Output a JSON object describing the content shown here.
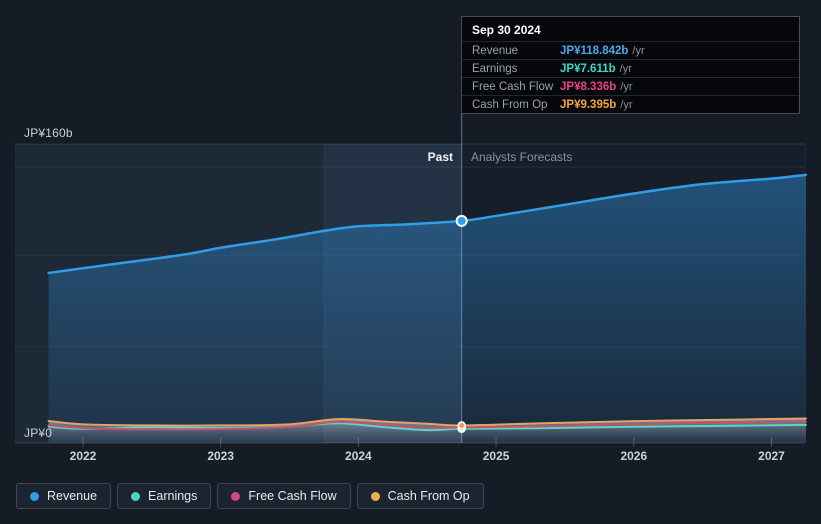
{
  "tooltip": {
    "date": "Sep 30 2024",
    "rows": [
      {
        "label": "Revenue",
        "value": "JP¥118.842b",
        "suffix": "/yr",
        "color": "#4aa9ee"
      },
      {
        "label": "Earnings",
        "value": "JP¥7.611b",
        "suffix": "/yr",
        "color": "#3fd9c6"
      },
      {
        "label": "Free Cash Flow",
        "value": "JP¥8.336b",
        "suffix": "/yr",
        "color": "#e8457f"
      },
      {
        "label": "Cash From Op",
        "value": "JP¥9.395b",
        "suffix": "/yr",
        "color": "#f2a93b"
      }
    ]
  },
  "axis": {
    "y_top_label": "JP¥160b",
    "y_zero_label": "JP¥0"
  },
  "sections": {
    "past_label": "Past",
    "forecast_label": "Analysts Forecasts"
  },
  "legend": [
    {
      "label": "Revenue",
      "color": "#2f9de8"
    },
    {
      "label": "Earnings",
      "color": "#46d8c2"
    },
    {
      "label": "Free Cash Flow",
      "color": "#d6497f"
    },
    {
      "label": "Cash From Op",
      "color": "#ecaf57"
    }
  ],
  "chart_data": {
    "type": "area",
    "title": "Past and future earnings per year (JP¥, billions)",
    "x_ticks": [
      2022,
      2023,
      2024,
      2025,
      2026,
      2027
    ],
    "x_range": [
      2021.75,
      2027.25
    ],
    "y_range": [
      0,
      160
    ],
    "grid_values": [
      160,
      100.5,
      51.5,
      0
    ],
    "divider_x": 2024.75,
    "past_band": [
      2023.75,
      2024.75
    ],
    "legend_position": "bottom",
    "series": [
      {
        "name": "Revenue",
        "color": "#2f9de8",
        "fill": "blue",
        "width": 2.5,
        "marker": {
          "x": 2024.75,
          "y": 118.842
        },
        "points": [
          [
            2021.75,
            91
          ],
          [
            2022,
            93.5
          ],
          [
            2022.35,
            97
          ],
          [
            2022.75,
            101
          ],
          [
            2023,
            104.5
          ],
          [
            2023.4,
            109
          ],
          [
            2023.75,
            113.5
          ],
          [
            2024,
            116
          ],
          [
            2024.35,
            117
          ],
          [
            2024.75,
            118.842
          ],
          [
            2025,
            121.5
          ],
          [
            2025.5,
            127.5
          ],
          [
            2026,
            133.5
          ],
          [
            2026.5,
            138.5
          ],
          [
            2027,
            141.5
          ],
          [
            2027.25,
            143.5
          ]
        ]
      },
      {
        "name": "Earnings",
        "color": "#56d8c4",
        "fill": null,
        "width": 2,
        "marker": {
          "x": 2024.75,
          "y": 7.611
        },
        "points": [
          [
            2021.75,
            8.8
          ],
          [
            2022,
            7.6
          ],
          [
            2022.5,
            8.4
          ],
          [
            2023,
            8.0
          ],
          [
            2023.5,
            8.8
          ],
          [
            2023.85,
            10.6
          ],
          [
            2024.2,
            8.4
          ],
          [
            2024.5,
            6.9
          ],
          [
            2024.75,
            7.611
          ],
          [
            2025.3,
            7.9
          ],
          [
            2026,
            8.7
          ],
          [
            2026.8,
            9.3
          ],
          [
            2027.25,
            9.7
          ]
        ]
      },
      {
        "name": "Free Cash Flow",
        "color": "#c65073",
        "fill": null,
        "width": 2,
        "marker": {
          "x": 2024.75,
          "y": 8.336
        },
        "points": [
          [
            2021.75,
            9.6
          ],
          [
            2022,
            8.0
          ],
          [
            2022.5,
            7.3
          ],
          [
            2023,
            7.5
          ],
          [
            2023.5,
            8.6
          ],
          [
            2023.85,
            11.3
          ],
          [
            2024.2,
            9.6
          ],
          [
            2024.5,
            8.1
          ],
          [
            2024.75,
            8.336
          ],
          [
            2025.3,
            8.9
          ],
          [
            2026,
            10.1
          ],
          [
            2026.8,
            10.9
          ],
          [
            2027.25,
            11.4
          ]
        ]
      },
      {
        "name": "Cash From Op",
        "color": "#e5a45c",
        "fill": "gray",
        "width": 2,
        "marker": {
          "x": 2024.75,
          "y": 9.395
        },
        "points": [
          [
            2021.75,
            11.8
          ],
          [
            2022,
            10.0
          ],
          [
            2022.5,
            9.4
          ],
          [
            2023,
            9.4
          ],
          [
            2023.5,
            10.0
          ],
          [
            2023.85,
            12.8
          ],
          [
            2024.2,
            11.4
          ],
          [
            2024.5,
            10.3
          ],
          [
            2024.75,
            9.395
          ],
          [
            2025.3,
            10.5
          ],
          [
            2026,
            11.7
          ],
          [
            2026.8,
            12.6
          ],
          [
            2027.25,
            13.1
          ]
        ]
      }
    ]
  }
}
